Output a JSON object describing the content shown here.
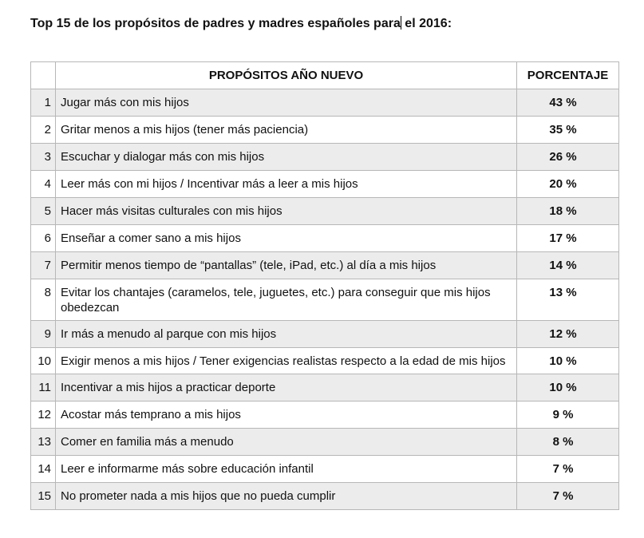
{
  "document": {
    "title_before_cursor": "Top 15 de los propósitos de padres y madres españoles para",
    "title_after_cursor": " el 2016:"
  },
  "table": {
    "headers": {
      "number": "",
      "purpose": "PROPÓSITOS AÑO NUEVO",
      "percentage": "PORCENTAJE"
    },
    "rows": [
      {
        "number": "1",
        "purpose": "Jugar más con mis hijos",
        "percentage": "43 %"
      },
      {
        "number": "2",
        "purpose": "Gritar menos a mis hijos (tener más paciencia)",
        "percentage": "35 %"
      },
      {
        "number": "3",
        "purpose": "Escuchar y dialogar más con mis hijos",
        "percentage": "26 %"
      },
      {
        "number": "4",
        "purpose": "Leer más con mi hijos / Incentivar más a leer a mis hijos",
        "percentage": "20 %"
      },
      {
        "number": "5",
        "purpose": "Hacer más visitas culturales con mis hijos",
        "percentage": "18 %"
      },
      {
        "number": "6",
        "purpose": "Enseñar a comer sano a mis hijos",
        "percentage": "17 %"
      },
      {
        "number": "7",
        "purpose": "Permitir menos tiempo de “pantallas” (tele, iPad, etc.) al día a mis hijos",
        "percentage": "14 %"
      },
      {
        "number": "8",
        "purpose": "Evitar los chantajes (caramelos, tele, juguetes, etc.) para conseguir que mis hijos obedezcan",
        "percentage": "13 %"
      },
      {
        "number": "9",
        "purpose": "Ir más a menudo al parque con mis hijos",
        "percentage": "12 %"
      },
      {
        "number": "10",
        "purpose": "Exigir menos a mis hijos / Tener exigencias realistas respecto a la edad de mis hijos",
        "percentage": "10 %"
      },
      {
        "number": "11",
        "purpose": "Incentivar a mis hijos a practicar deporte",
        "percentage": "10 %"
      },
      {
        "number": "12",
        "purpose": "Acostar más temprano a mis hijos",
        "percentage": "9 %"
      },
      {
        "number": "13",
        "purpose": "Comer en familia más a menudo",
        "percentage": "8 %"
      },
      {
        "number": "14",
        "purpose": "Leer e informarme más sobre educación infantil",
        "percentage": "7 %"
      },
      {
        "number": "15",
        "purpose": "No prometer nada a mis hijos que no pueda cumplir",
        "percentage": "7 %"
      }
    ]
  }
}
